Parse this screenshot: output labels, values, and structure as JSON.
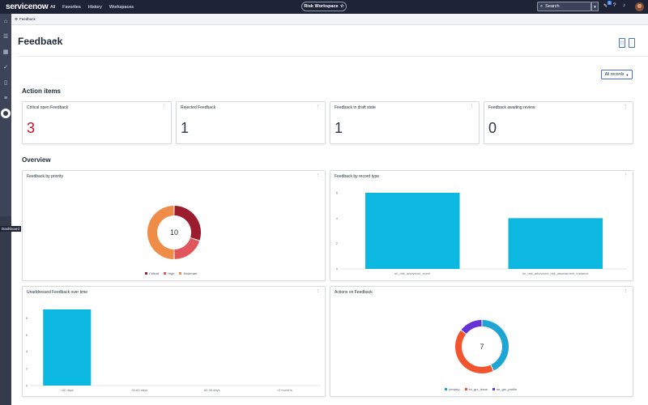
{
  "topnav": {
    "logo": "servicenow",
    "links": [
      "All",
      "Favorites",
      "History",
      "Workspaces"
    ],
    "workspace": "Risk Workspace",
    "search_placeholder": "Search",
    "notification_count": "2"
  },
  "sidebar": {
    "tooltip": "Dashboard"
  },
  "breadcrumb": {
    "label": "Feedback"
  },
  "header": {
    "title": "Feedback",
    "filter_label": "All records"
  },
  "sections": {
    "action_items": "Action items",
    "overview": "Overview"
  },
  "action_items": [
    {
      "title": "Critical open Feedback",
      "value": "3",
      "color": "#c8102e"
    },
    {
      "title": "Rejected Feedback",
      "value": "1",
      "color": "#2f3947"
    },
    {
      "title": "Feedback in draft state",
      "value": "1",
      "color": "#2f3947"
    },
    {
      "title": "Feedback awaiting review",
      "value": "0",
      "color": "#2f3947"
    }
  ],
  "widgets": {
    "priority": {
      "title": "Feedback by priority"
    },
    "record_type": {
      "title": "Feedback by record type"
    },
    "unaddressed": {
      "title": "Unaddressed Feedback over time"
    },
    "actions": {
      "title": "Actions on Feedback"
    }
  },
  "chart_data": [
    {
      "type": "pie",
      "variant": "donut",
      "center_label": "10",
      "labels": [
        "Critical",
        "High",
        "Moderate"
      ],
      "values": [
        3,
        2,
        5
      ],
      "colors": [
        "#9b1c2c",
        "#e0565c",
        "#ef8c47"
      ]
    },
    {
      "type": "bar",
      "categories": [
        "sn_risk_advanced_event",
        "sn_risk_advanced_risk_assessment_instance"
      ],
      "values": [
        6,
        4
      ],
      "ylim": [
        0,
        6
      ],
      "yticks": [
        0,
        2,
        4,
        6
      ],
      "color": "#0cb7e0"
    },
    {
      "type": "bar",
      "categories": [
        "<30 days",
        "30-60 days",
        "60-90 days",
        ">3 months"
      ],
      "values": [
        9,
        0,
        0,
        0
      ],
      "ylim": [
        0,
        9
      ],
      "yticks": [
        0,
        2,
        4,
        6,
        8
      ],
      "color": "#0cb7e0"
    },
    {
      "type": "pie",
      "variant": "donut",
      "center_label": "7",
      "labels": [
        "(empty)",
        "sn_grc_issue",
        "sn_grc_profile"
      ],
      "values": [
        3,
        3,
        1
      ],
      "colors": [
        "#1fa4d6",
        "#f2542d",
        "#6532d8"
      ]
    }
  ]
}
